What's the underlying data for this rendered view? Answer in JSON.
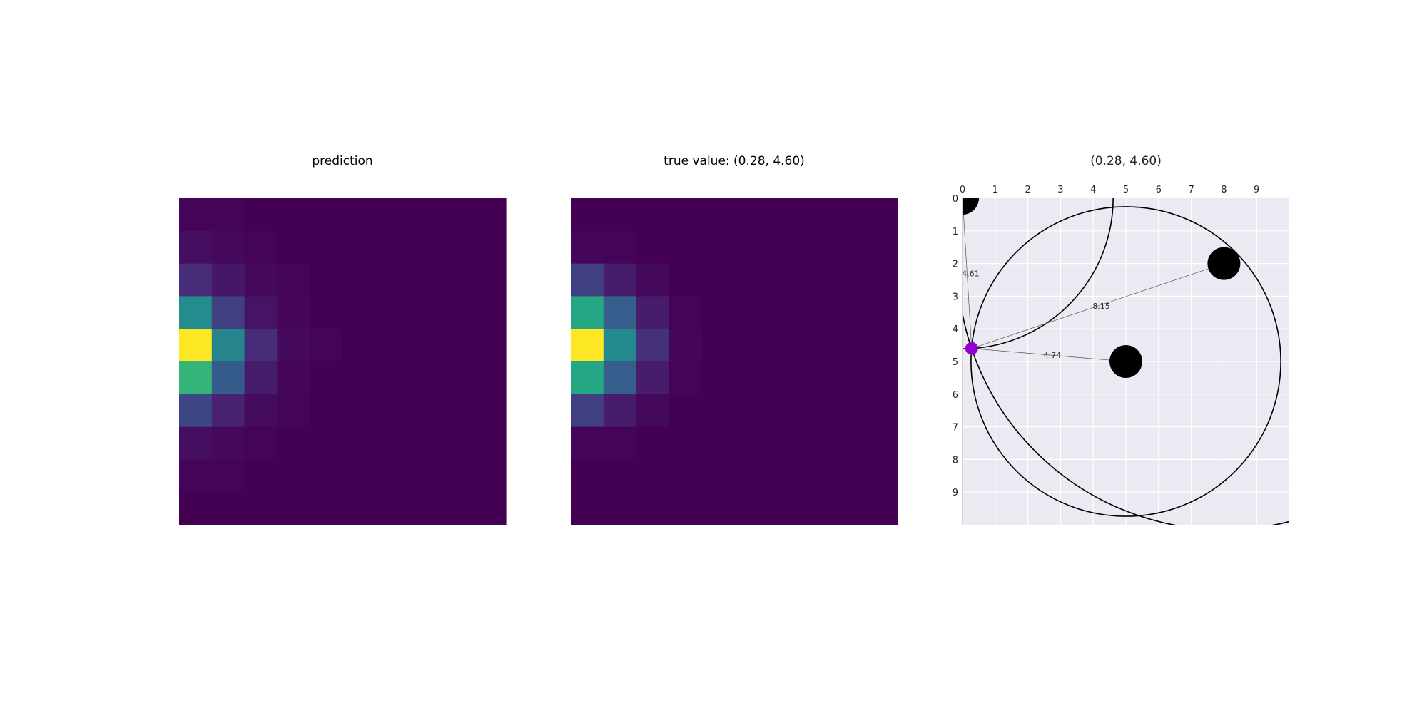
{
  "chart_data": [
    {
      "type": "heatmap",
      "title": "prediction",
      "colormap": "viridis",
      "rows": 10,
      "cols": 10,
      "values": [
        [
          0.01,
          0.01,
          0.0,
          0.0,
          0.0,
          0.0,
          0.0,
          0.0,
          0.0,
          0.0
        ],
        [
          0.05,
          0.03,
          0.01,
          0.0,
          0.0,
          0.0,
          0.0,
          0.0,
          0.0,
          0.0
        ],
        [
          0.15,
          0.08,
          0.03,
          0.01,
          0.0,
          0.0,
          0.0,
          0.0,
          0.0,
          0.0
        ],
        [
          0.48,
          0.2,
          0.07,
          0.02,
          0.0,
          0.0,
          0.0,
          0.0,
          0.0,
          0.0
        ],
        [
          1.0,
          0.45,
          0.15,
          0.03,
          0.01,
          0.0,
          0.0,
          0.0,
          0.0,
          0.0
        ],
        [
          0.66,
          0.29,
          0.1,
          0.02,
          0.0,
          0.0,
          0.0,
          0.0,
          0.0,
          0.0
        ],
        [
          0.22,
          0.12,
          0.04,
          0.01,
          0.0,
          0.0,
          0.0,
          0.0,
          0.0,
          0.0
        ],
        [
          0.05,
          0.03,
          0.01,
          0.0,
          0.0,
          0.0,
          0.0,
          0.0,
          0.0,
          0.0
        ],
        [
          0.01,
          0.01,
          0.0,
          0.0,
          0.0,
          0.0,
          0.0,
          0.0,
          0.0,
          0.0
        ],
        [
          0.0,
          0.0,
          0.0,
          0.0,
          0.0,
          0.0,
          0.0,
          0.0,
          0.0,
          0.0
        ]
      ]
    },
    {
      "type": "heatmap",
      "title": "true value: (0.28, 4.60)",
      "colormap": "viridis",
      "rows": 10,
      "cols": 10,
      "values": [
        [
          0.0,
          0.0,
          0.0,
          0.0,
          0.0,
          0.0,
          0.0,
          0.0,
          0.0,
          0.0
        ],
        [
          0.02,
          0.01,
          0.0,
          0.0,
          0.0,
          0.0,
          0.0,
          0.0,
          0.0,
          0.0
        ],
        [
          0.2,
          0.1,
          0.03,
          0.0,
          0.0,
          0.0,
          0.0,
          0.0,
          0.0,
          0.0
        ],
        [
          0.6,
          0.3,
          0.1,
          0.01,
          0.0,
          0.0,
          0.0,
          0.0,
          0.0,
          0.0
        ],
        [
          1.0,
          0.47,
          0.16,
          0.02,
          0.0,
          0.0,
          0.0,
          0.0,
          0.0,
          0.0
        ],
        [
          0.6,
          0.3,
          0.1,
          0.01,
          0.0,
          0.0,
          0.0,
          0.0,
          0.0,
          0.0
        ],
        [
          0.2,
          0.1,
          0.03,
          0.0,
          0.0,
          0.0,
          0.0,
          0.0,
          0.0,
          0.0
        ],
        [
          0.02,
          0.01,
          0.0,
          0.0,
          0.0,
          0.0,
          0.0,
          0.0,
          0.0,
          0.0
        ],
        [
          0.0,
          0.0,
          0.0,
          0.0,
          0.0,
          0.0,
          0.0,
          0.0,
          0.0,
          0.0
        ],
        [
          0.0,
          0.0,
          0.0,
          0.0,
          0.0,
          0.0,
          0.0,
          0.0,
          0.0,
          0.0
        ]
      ]
    },
    {
      "type": "scatter",
      "title": "(0.28, 4.60)",
      "xlim": [
        0,
        10
      ],
      "ylim": [
        10,
        0
      ],
      "x_ticks": [
        0,
        1,
        2,
        3,
        4,
        5,
        6,
        7,
        8,
        9
      ],
      "y_ticks": [
        0,
        1,
        2,
        3,
        4,
        5,
        6,
        7,
        8,
        9
      ],
      "x_tick_position": "top",
      "grid": true,
      "background_color": "#eaeaf2",
      "anchors": [
        {
          "x": 0,
          "y": 0,
          "distance": 4.61
        },
        {
          "x": 8,
          "y": 2,
          "distance": 8.15
        },
        {
          "x": 5,
          "y": 5,
          "distance": 4.74
        }
      ],
      "anchor_color": "#000000",
      "target": {
        "x": 0.28,
        "y": 4.6,
        "color": "#9400d3"
      }
    }
  ]
}
